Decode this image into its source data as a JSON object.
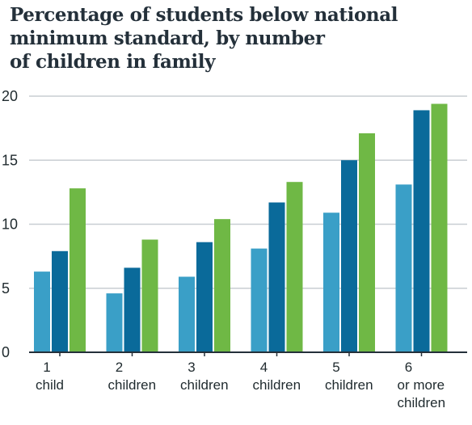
{
  "chart_data": {
    "type": "bar",
    "title_lines": [
      "Percentage of students below national",
      "minimum standard, by number",
      "of children in family"
    ],
    "title": "Percentage of students below national minimum standard, by number of children in family",
    "xlabel": "",
    "ylabel": "",
    "ylim": [
      0,
      20
    ],
    "yticks": [
      0,
      5,
      10,
      15,
      20
    ],
    "grid": true,
    "legend": "none",
    "categories": [
      [
        "1",
        "child"
      ],
      [
        "2",
        "children"
      ],
      [
        "3",
        "children"
      ],
      [
        "4",
        "children"
      ],
      [
        "5",
        "children"
      ],
      [
        "6",
        "or more",
        "children"
      ]
    ],
    "series": [
      {
        "values": [
          6.3,
          4.6,
          5.9,
          8.1,
          10.9,
          13.1
        ],
        "color": "#3a9fc7"
      },
      {
        "values": [
          7.9,
          6.6,
          8.6,
          11.7,
          15.0,
          18.9
        ],
        "color": "#0a6a9a"
      },
      {
        "values": [
          12.8,
          8.8,
          10.4,
          13.3,
          17.1,
          19.4
        ],
        "color": "#6fb845"
      }
    ],
    "colors": {
      "grid": "#c8ced2",
      "axis": "#24303a"
    }
  }
}
